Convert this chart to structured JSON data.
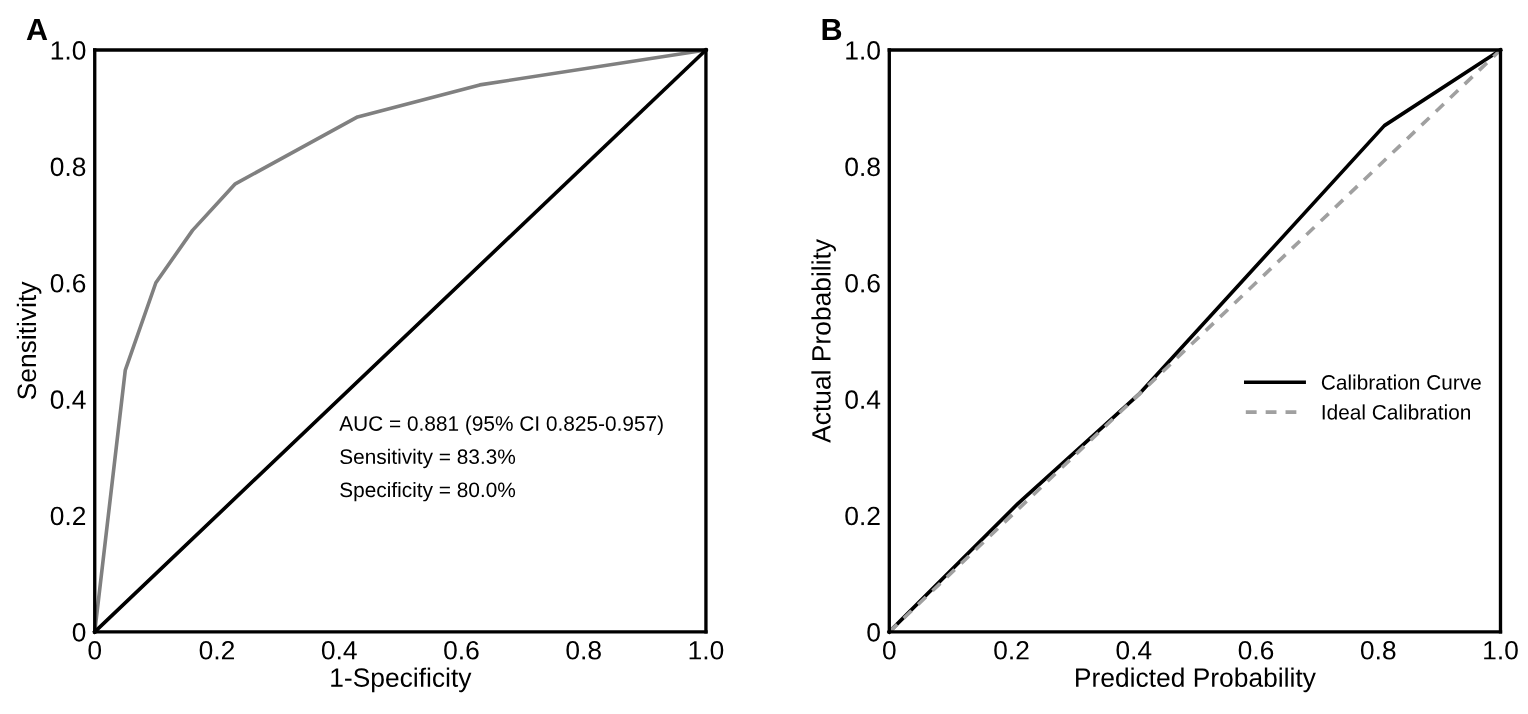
{
  "chart_data": [
    {
      "type": "line",
      "title": "A",
      "xlabel": "1-Specificity",
      "ylabel": "Sensitivity",
      "series": [
        {
          "color": "#808080",
          "x": [
            0,
            0.05,
            0.1,
            0.16,
            0.23,
            0.43,
            0.63,
            1.0
          ],
          "values": [
            0,
            0.45,
            0.6,
            0.69,
            0.77,
            0.885,
            0.94,
            1.0
          ]
        },
        {
          "color": "#000000",
          "x": [
            0,
            1.0
          ],
          "values": [
            0,
            1.0
          ]
        }
      ],
      "annotations": [
        "AUC = 0.881 (95% CI 0.825-0.957)",
        "Sensitivity = 83.3%",
        "Specificity = 80.0%"
      ],
      "xlim": [
        0,
        1.0
      ],
      "ylim": [
        0,
        1.0
      ],
      "xticks": [
        0,
        0.2,
        0.4,
        0.6,
        0.8,
        {
          "value": 1.0,
          "label": "1.0"
        }
      ],
      "yticks": [
        0,
        0.2,
        0.4,
        0.6,
        0.8,
        {
          "value": 1.0,
          "label": "1.0"
        }
      ],
      "grid": false,
      "legend": false
    },
    {
      "type": "line",
      "title": "B",
      "xlabel": "Predicted Probability",
      "ylabel": "Actual Probability",
      "series": [
        {
          "name": "Calibration Curve",
          "color": "#000000",
          "line_style": "solid",
          "x": [
            0,
            0.21,
            0.41,
            0.81,
            1.0
          ],
          "values": [
            0,
            0.22,
            0.41,
            0.87,
            1.0
          ]
        },
        {
          "name": "Ideal Calibration",
          "color": "#a0a0a0",
          "line_style": "dashed",
          "x": [
            0,
            1.0
          ],
          "values": [
            0,
            1.0
          ]
        }
      ],
      "xlim": [
        0,
        1.0
      ],
      "ylim": [
        0,
        1.0
      ],
      "xticks": [
        0,
        0.2,
        0.4,
        0.6,
        0.8,
        {
          "value": 1.0,
          "label": "1.0"
        }
      ],
      "yticks": [
        0,
        0.2,
        0.4,
        0.6,
        0.8,
        {
          "value": 1.0,
          "label": "1.0"
        }
      ],
      "grid": false,
      "legend": "right"
    }
  ]
}
